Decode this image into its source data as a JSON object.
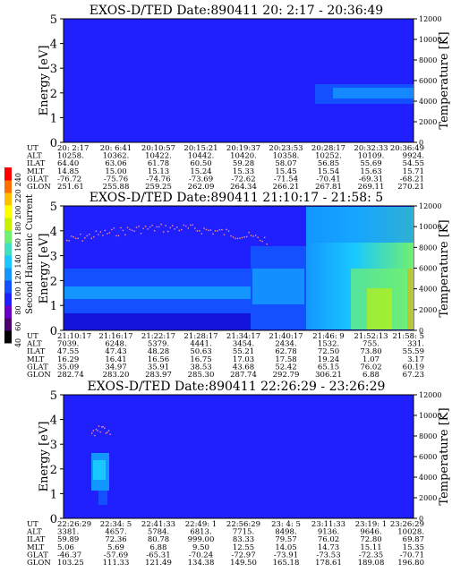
{
  "chart_data": [
    {
      "type": "heatmap",
      "title": "EXOS-D/TED   Date:890411  20: 2:17 - 20:36:49",
      "ylabel": "Energy [eV]",
      "y2label": "Temperature [K]",
      "ylim": [
        0,
        5
      ],
      "y2lim": [
        0,
        12000
      ],
      "yticks": [
        "0",
        "1",
        "2",
        "3",
        "4",
        "5"
      ],
      "y2ticks": [
        "0",
        "2000",
        "4000",
        "6000",
        "8000",
        "10000",
        "12000"
      ],
      "table_labels": [
        "UT",
        "ALT",
        "ILAT",
        "MLT",
        "GLAT",
        "GLON"
      ],
      "columns": [
        [
          "20: 2:17",
          "10258.",
          "64.40",
          "14.85",
          "-76.72",
          "251.61"
        ],
        [
          "20: 6:41",
          "10362.",
          "63.06",
          "15.00",
          "-75.76",
          "255.88"
        ],
        [
          "20:10:57",
          "10422.",
          "61.78",
          "15.13",
          "-74.76",
          "259.25"
        ],
        [
          "20:15:21",
          "10442.",
          "60.50",
          "15.24",
          "-73.69",
          "262.09"
        ],
        [
          "20:19:37",
          "10420.",
          "59.28",
          "15.33",
          "-72.62",
          "264.34"
        ],
        [
          "20:23:53",
          "10358.",
          "58.07",
          "15.45",
          "-71.54",
          "266.21"
        ],
        [
          "20:28:17",
          "10252.",
          "56.85",
          "15.54",
          "-70.41",
          "267.81"
        ],
        [
          "20:32:33",
          "10109.",
          "55.69",
          "15.63",
          "-69.31",
          "269.11"
        ],
        [
          "20:36:49",
          "9924.",
          "54.55",
          "15.71",
          "-68.21",
          "270.21"
        ]
      ]
    },
    {
      "type": "heatmap",
      "title": "EXOS-D/TED   Date:890411  21:10:17 - 21:58: 5",
      "ylabel": "Energy [eV]",
      "y2label": "Temperature [K]",
      "ylim": [
        0,
        5
      ],
      "y2lim": [
        0,
        12000
      ],
      "yticks": [
        "0",
        "1",
        "2",
        "3",
        "4",
        "5"
      ],
      "y2ticks": [
        "0",
        "2000",
        "4000",
        "6000",
        "8000",
        "10000",
        "12000"
      ],
      "table_labels": [
        "UT",
        "ALT",
        "ILAT",
        "MLT",
        "GLAT",
        "GLON"
      ],
      "columns": [
        [
          "21:10:17",
          "7039.",
          "47.55",
          "16.29",
          "35.09",
          "282.74"
        ],
        [
          "21:16:17",
          "6248.",
          "47.43",
          "16.41",
          "34.97",
          "283.20"
        ],
        [
          "21:22:17",
          "5379.",
          "48.28",
          "16.56",
          "35.91",
          "283.97"
        ],
        [
          "21:28:17",
          "4441.",
          "50.63",
          "16.75",
          "38.53",
          "285.30"
        ],
        [
          "21:34:17",
          "3454.",
          "55.21",
          "17.03",
          "43.68",
          "287.74"
        ],
        [
          "21:40:17",
          "2434.",
          "62.78",
          "17.58",
          "52.42",
          "292.79"
        ],
        [
          "21:46: 9",
          "1532.",
          "72.50",
          "19.24",
          "65.15",
          "306.21"
        ],
        [
          "21:52:13",
          "755.",
          "73.80",
          "1.07",
          "76.02",
          "6.88"
        ],
        [
          "21:58: 5",
          "331.",
          "55.59",
          "3.17",
          "60.19",
          "67.23"
        ]
      ],
      "colorbar": {
        "label": "Second Harmonic Current",
        "ticks": [
          "40",
          "60",
          "80",
          "100",
          "120",
          "140",
          "160",
          "180",
          "200",
          "220",
          "240"
        ],
        "colors": [
          "#000000",
          "#4a0070",
          "#6a00c8",
          "#2020ff",
          "#1450ff",
          "#1496ff",
          "#19c8ff",
          "#40e0c0",
          "#70f070",
          "#c8f000",
          "#ffff00",
          "#ffc000",
          "#ff7000",
          "#ff0000"
        ]
      }
    },
    {
      "type": "heatmap",
      "title": "EXOS-D/TED   Date:890411  22:26:29 - 23:26:29",
      "ylabel": "Energy [eV]",
      "y2label": "Temperature [K]",
      "ylim": [
        0,
        5
      ],
      "y2lim": [
        0,
        12000
      ],
      "yticks": [
        "0",
        "1",
        "2",
        "3",
        "4",
        "5"
      ],
      "y2ticks": [
        "0",
        "2000",
        "4000",
        "6000",
        "8000",
        "10000",
        "12000"
      ],
      "table_labels": [
        "UT",
        "ALT",
        "ILAT",
        "MLT",
        "GLAT",
        "GLON"
      ],
      "columns": [
        [
          "22:26:29",
          "3381.",
          "59.89",
          "5.06",
          "-46.37",
          "103.25"
        ],
        [
          "22:34: 5",
          "4657.",
          "72.36",
          "5.69",
          "-57.69",
          "111.33"
        ],
        [
          "22:41:33",
          "5784.",
          "80.78",
          "6.88",
          "-65.31",
          "121.49"
        ],
        [
          "22:49: 1",
          "6813.",
          "999.00",
          "9.50",
          "-70.24",
          "134.38"
        ],
        [
          "22:56:29",
          "7715.",
          "83.33",
          "12.55",
          "-72.97",
          "149.50"
        ],
        [
          "23: 4: 5",
          "8498.",
          "79.57",
          "14.05",
          "-73.91",
          "165.18"
        ],
        [
          "23:11:33",
          "9136.",
          "76.02",
          "14.73",
          "-73.53",
          "178.61"
        ],
        [
          "23:19: 1",
          "9646.",
          "72.80",
          "15.11",
          "-72.35",
          "189.08"
        ],
        [
          "23:26:29",
          "10028.",
          "69.87",
          "15.35",
          "-70.71",
          "196.80"
        ]
      ]
    }
  ],
  "colors": {
    "background_blue": "#2020ff",
    "deep_blue": "#1414dc",
    "mid_blue": "#1450ff",
    "light_blue": "#1496ff",
    "cyan": "#19c8ff",
    "green": "#70f070",
    "yellow": "#ffff00",
    "orange": "#ffa000"
  }
}
